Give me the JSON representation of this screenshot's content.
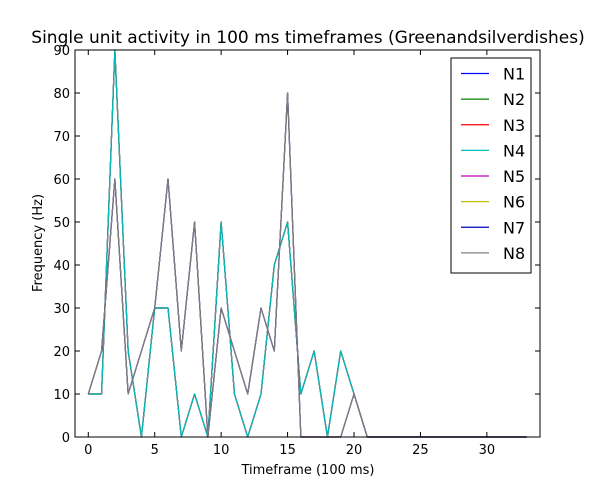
{
  "chart_data": {
    "type": "line",
    "title": "Single unit activity in 100 ms timeframes (Greenandsilverdishes)",
    "xlabel": "Timeframe (100 ms)",
    "ylabel": "Frequency (Hz)",
    "xlim": [
      -1,
      34
    ],
    "ylim": [
      0,
      90
    ],
    "xticks": [
      0,
      5,
      10,
      15,
      20,
      25,
      30
    ],
    "yticks": [
      0,
      10,
      20,
      30,
      40,
      50,
      60,
      70,
      80,
      90
    ],
    "grid": false,
    "legend_position": "top-right",
    "x": [
      0,
      1,
      2,
      3,
      4,
      5,
      6,
      7,
      8,
      9,
      10,
      11,
      12,
      13,
      14,
      15,
      16,
      17,
      18,
      19,
      20,
      21,
      22,
      23,
      24,
      25,
      26,
      27,
      28,
      29,
      30,
      31,
      32,
      33
    ],
    "series": [
      {
        "name": "N1",
        "color": "#0000ff",
        "values": [
          10,
          10,
          90,
          20,
          0,
          30,
          30,
          0,
          10,
          0,
          50,
          10,
          0,
          10,
          40,
          50,
          10,
          20,
          0,
          20,
          10,
          0,
          0,
          0,
          0,
          0,
          0,
          0,
          0,
          0,
          0,
          0,
          0,
          0
        ]
      },
      {
        "name": "N2",
        "color": "#008000",
        "values": [
          10,
          10,
          90,
          20,
          0,
          30,
          30,
          0,
          10,
          0,
          50,
          10,
          0,
          10,
          40,
          50,
          10,
          20,
          0,
          20,
          10,
          0,
          0,
          0,
          0,
          0,
          0,
          0,
          0,
          0,
          0,
          0,
          0,
          0
        ]
      },
      {
        "name": "N3",
        "color": "#ff0000",
        "values": [
          10,
          10,
          90,
          20,
          0,
          30,
          30,
          0,
          10,
          0,
          50,
          10,
          0,
          10,
          40,
          50,
          10,
          20,
          0,
          20,
          10,
          0,
          0,
          0,
          0,
          0,
          0,
          0,
          0,
          0,
          0,
          0,
          0,
          0
        ]
      },
      {
        "name": "N4",
        "color": "#00bfbf",
        "values": [
          10,
          10,
          90,
          20,
          0,
          30,
          30,
          0,
          10,
          0,
          50,
          10,
          0,
          10,
          40,
          50,
          10,
          20,
          0,
          20,
          10,
          0,
          0,
          0,
          0,
          0,
          0,
          0,
          0,
          0,
          0,
          0,
          0,
          0
        ]
      },
      {
        "name": "N5",
        "color": "#bf00bf",
        "values": [
          10,
          20,
          60,
          10,
          20,
          30,
          60,
          20,
          50,
          0,
          30,
          20,
          10,
          30,
          20,
          80,
          0,
          0,
          0,
          0,
          10,
          0,
          0,
          0,
          0,
          0,
          0,
          0,
          0,
          0,
          0,
          0,
          0,
          0
        ]
      },
      {
        "name": "N6",
        "color": "#bfbf00",
        "values": [
          10,
          20,
          60,
          10,
          20,
          30,
          60,
          20,
          50,
          0,
          30,
          20,
          10,
          30,
          20,
          80,
          0,
          0,
          0,
          0,
          10,
          0,
          0,
          0,
          0,
          0,
          0,
          0,
          0,
          0,
          0,
          0,
          0,
          0
        ]
      },
      {
        "name": "N7",
        "color": "#0000bf",
        "values": [
          10,
          20,
          60,
          10,
          20,
          30,
          60,
          20,
          50,
          0,
          30,
          20,
          10,
          30,
          20,
          80,
          0,
          0,
          0,
          0,
          10,
          0,
          0,
          0,
          0,
          0,
          0,
          0,
          0,
          0,
          0,
          0,
          0,
          0
        ]
      },
      {
        "name": "N8",
        "color": "#808080",
        "values": [
          10,
          20,
          60,
          10,
          20,
          30,
          60,
          20,
          50,
          0,
          30,
          20,
          10,
          30,
          20,
          80,
          0,
          0,
          0,
          0,
          10,
          0,
          0,
          0,
          0,
          0,
          0,
          0,
          0,
          0,
          0,
          0,
          0,
          0
        ]
      }
    ]
  }
}
